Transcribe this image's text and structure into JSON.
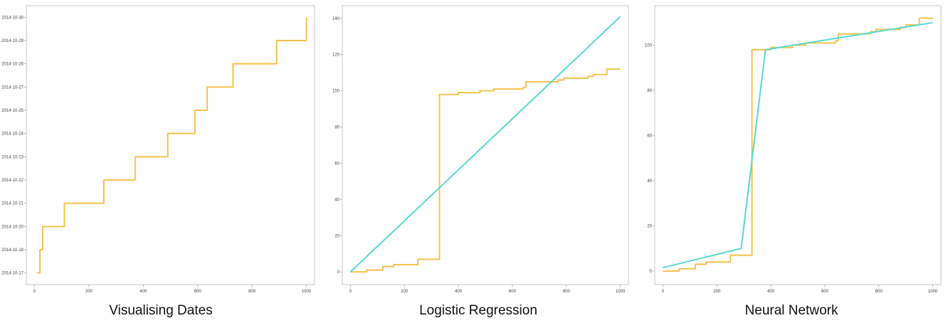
{
  "captions": [
    "Visualising Dates",
    "Logistic Regression",
    "Neural Network"
  ],
  "colors": {
    "actual": "#f5c24b",
    "prediction": "#57d9d2",
    "axis": "#c8c8c8"
  },
  "chart_data": [
    {
      "type": "line",
      "title": "Visualising Dates",
      "xlabel": "",
      "ylabel": "",
      "xlim": [
        0,
        1000
      ],
      "x_ticks": [
        "0",
        "200",
        "400",
        "600",
        "800",
        "1000"
      ],
      "y_ticks": [
        "2014-10-17",
        "2014-10-18",
        "2014-10-20",
        "2014-10-21",
        "2014-10-22",
        "2014-10-23",
        "2014-10-24",
        "2014-10-25",
        "2014-10-27",
        "2014-10-28",
        "2014-10-29",
        "2014-10-30"
      ],
      "series": [
        {
          "color": "actual",
          "step": true,
          "x": [
            8,
            20,
            30,
            110,
            255,
            370,
            490,
            590,
            635,
            730,
            890,
            1000
          ],
          "y": [
            "2014-10-17",
            "2014-10-18",
            "2014-10-20",
            "2014-10-21",
            "2014-10-22",
            "2014-10-23",
            "2014-10-24",
            "2014-10-25",
            "2014-10-27",
            "2014-10-28",
            "2014-10-29",
            "2014-10-30"
          ]
        }
      ]
    },
    {
      "type": "line",
      "title": "Logistic Regression",
      "xlabel": "",
      "ylabel": "",
      "xlim": [
        0,
        1000
      ],
      "ylim": [
        0,
        140
      ],
      "x_ticks": [
        "0",
        "200",
        "400",
        "600",
        "800",
        "1000"
      ],
      "y_ticks": [
        "0",
        "20",
        "40",
        "60",
        "80",
        "100",
        "120",
        "140"
      ],
      "series": [
        {
          "color": "actual",
          "step": true,
          "x": [
            0,
            60,
            120,
            160,
            250,
            330,
            400,
            480,
            530,
            580,
            640,
            650,
            720,
            770,
            790,
            830,
            880,
            900,
            950,
            1000
          ],
          "y": [
            0,
            1,
            3,
            4,
            7,
            98,
            99,
            100,
            101,
            101,
            102,
            105,
            105,
            106,
            107,
            107,
            108,
            109,
            112,
            112
          ]
        },
        {
          "color": "prediction",
          "step": false,
          "x": [
            0,
            1000
          ],
          "y": [
            0,
            141
          ]
        }
      ]
    },
    {
      "type": "line",
      "title": "Neural Network",
      "xlabel": "",
      "ylabel": "",
      "xlim": [
        0,
        1000
      ],
      "ylim": [
        0,
        112
      ],
      "x_ticks": [
        "0",
        "200",
        "400",
        "600",
        "800",
        "1000"
      ],
      "y_ticks": [
        "0",
        "20",
        "40",
        "60",
        "80",
        "100"
      ],
      "series": [
        {
          "color": "actual",
          "step": true,
          "x": [
            0,
            60,
            120,
            160,
            250,
            330,
            400,
            480,
            530,
            580,
            640,
            650,
            720,
            770,
            790,
            830,
            880,
            900,
            950,
            1000
          ],
          "y": [
            0,
            1,
            3,
            4,
            7,
            98,
            99,
            100,
            101,
            101,
            102,
            105,
            105,
            106,
            107,
            107,
            108,
            109,
            112,
            112
          ]
        },
        {
          "color": "prediction",
          "step": false,
          "x": [
            0,
            290,
            380,
            1000
          ],
          "y": [
            1.5,
            10,
            98,
            110
          ]
        }
      ]
    }
  ]
}
